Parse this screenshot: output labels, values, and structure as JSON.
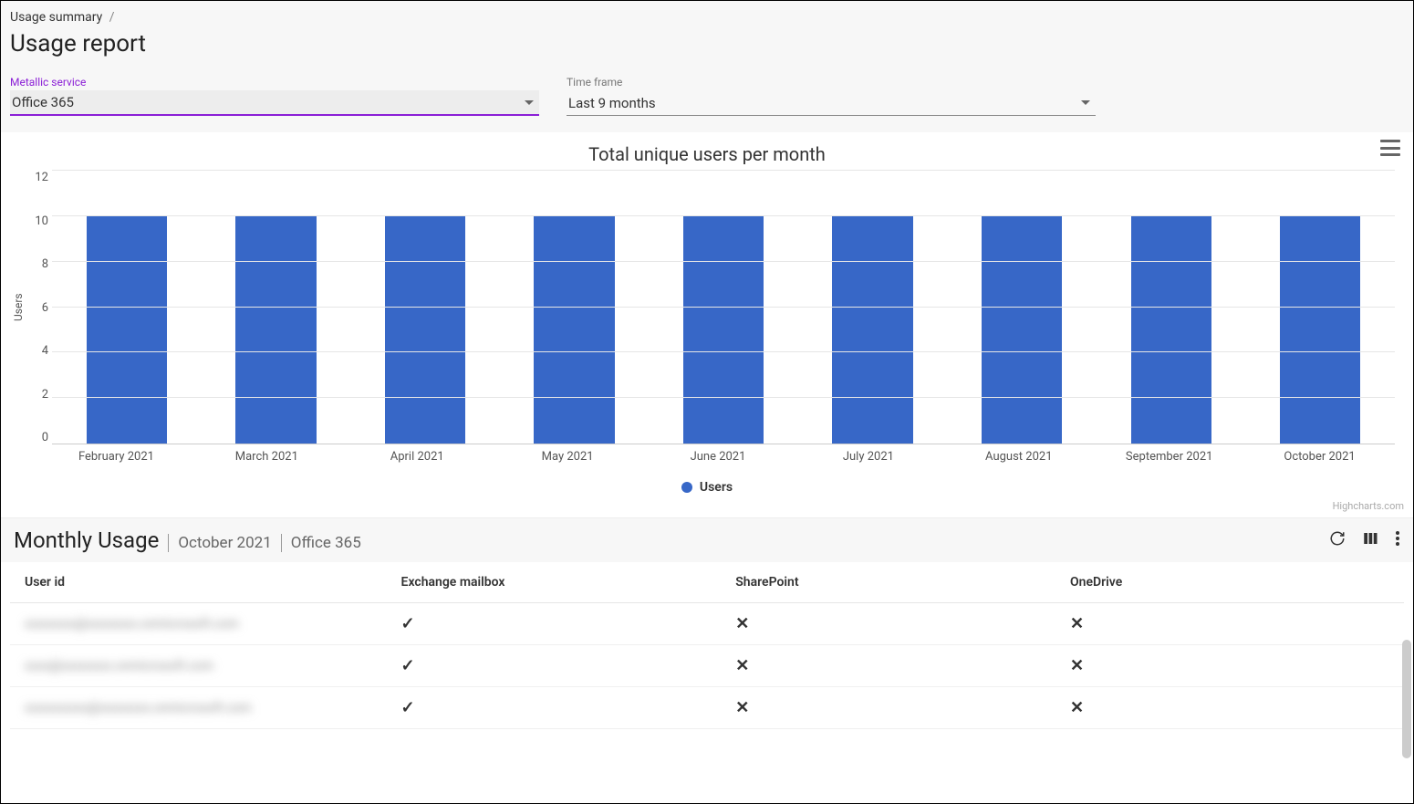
{
  "breadcrumb": {
    "root": "Usage summary",
    "sep": "/"
  },
  "page_title": "Usage report",
  "filters": {
    "service": {
      "label": "Metallic service",
      "value": "Office 365",
      "accent_color": "#8b1fd6"
    },
    "timeframe": {
      "label": "Time frame",
      "value": "Last 9 months"
    }
  },
  "chart": {
    "type": "bar",
    "title": "Total unique users per month",
    "y_axis_label": "Users",
    "ylim": [
      0,
      12
    ],
    "ytick_step": 2,
    "yticks": [
      12,
      10,
      8,
      6,
      4,
      2,
      0
    ],
    "categories": [
      "February 2021",
      "March 2021",
      "April 2021",
      "May 2021",
      "June 2021",
      "July 2021",
      "August 2021",
      "September 2021",
      "October 2021"
    ],
    "values": [
      10,
      10,
      10,
      10,
      10,
      10,
      10,
      10,
      10
    ],
    "bar_color": "#3767c7",
    "grid_color": "#e6e6e6",
    "background_color": "#ffffff",
    "bar_width_ratio": 0.54,
    "legend": {
      "label": "Users",
      "marker_color": "#3767c7"
    },
    "credit": "Highcharts.com"
  },
  "monthly_usage": {
    "title": "Monthly Usage",
    "context_month": "October 2021",
    "context_service": "Office 365",
    "columns": [
      "User id",
      "Exchange mailbox",
      "SharePoint",
      "OneDrive"
    ],
    "rows": [
      {
        "user_blur": "xxxxxxxx@xxxxxxxx.onmicrosoft.com",
        "exchange": true,
        "sharepoint": false,
        "onedrive": false
      },
      {
        "user_blur": "xxxx@xxxxxxxx.onmicrosoft.com",
        "exchange": true,
        "sharepoint": false,
        "onedrive": false
      },
      {
        "user_blur": "xxxxxxxxxx@xxxxxxxx.onmicrosoft.com",
        "exchange": true,
        "sharepoint": false,
        "onedrive": false
      }
    ],
    "check_glyph": "✓",
    "cross_glyph": "✕"
  }
}
